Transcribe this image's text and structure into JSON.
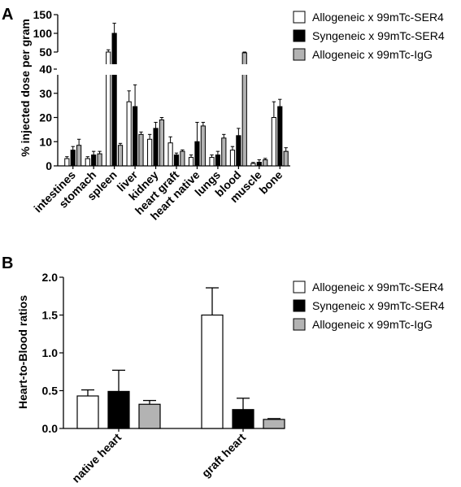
{
  "panels": {
    "a_letter": "A",
    "b_letter": "B"
  },
  "colors": {
    "allogeneic_ser4": "#ffffff",
    "syngeneic_ser4": "#000000",
    "allogeneic_igg": "#b3b3b3"
  },
  "chart_data": [
    {
      "panel": "A",
      "type": "bar",
      "ylabel": "% injected dose per gram",
      "axis_break": true,
      "lower_segment": {
        "ylim": [
          0,
          40
        ],
        "ticks": [
          "0",
          "10",
          "20",
          "30",
          "40"
        ]
      },
      "upper_segment": {
        "ylim": [
          50,
          150
        ],
        "ticks": [
          "50",
          "100",
          "150"
        ]
      },
      "categories": [
        "intestines",
        "stomach",
        "spleen",
        "liver",
        "kidney",
        "heart graft",
        "heart native",
        "lungs",
        "blood",
        "muscle",
        "bone"
      ],
      "series": [
        {
          "name": "Allogeneic x 99mTc-SER4",
          "values": [
            3,
            3,
            50,
            26.5,
            11,
            9.5,
            3.5,
            3.5,
            6.5,
            1,
            20
          ],
          "errors": [
            0.8,
            0.8,
            6,
            4.5,
            2,
            2.5,
            1,
            1,
            1.5,
            0.4,
            6.5
          ]
        },
        {
          "name": "Syngeneic x 99mTc-SER4",
          "values": [
            6.5,
            4.5,
            100,
            24.5,
            15.5,
            4.5,
            10,
            4.5,
            12.5,
            1.5,
            24.5
          ],
          "errors": [
            1.5,
            1.5,
            27,
            9,
            2.5,
            0.8,
            8,
            1.5,
            3,
            1,
            3
          ]
        },
        {
          "name": "Allogeneic x 99mTc-IgG",
          "values": [
            8.5,
            5,
            8.5,
            13,
            19,
            6,
            16.5,
            11.5,
            48,
            2.5,
            6
          ],
          "errors": [
            2.5,
            1,
            0.8,
            1,
            1,
            0.6,
            1.5,
            1.5,
            2,
            0.6,
            1.5
          ]
        }
      ]
    },
    {
      "panel": "B",
      "type": "bar",
      "ylabel": "Heart-to-Blood ratios",
      "ylim": [
        0,
        2.0
      ],
      "ticks": [
        "0.0",
        "0.5",
        "1.0",
        "1.5",
        "2.0"
      ],
      "categories": [
        "native heart",
        "graft heart"
      ],
      "series": [
        {
          "name": "Allogeneic x 99mTc-SER4",
          "values": [
            0.43,
            1.5
          ],
          "errors": [
            0.08,
            0.36
          ]
        },
        {
          "name": "Syngeneic x 99mTc-SER4",
          "values": [
            0.49,
            0.25
          ],
          "errors": [
            0.28,
            0.15
          ]
        },
        {
          "name": "Allogeneic x 99mTc-IgG",
          "values": [
            0.32,
            0.12
          ],
          "errors": [
            0.05,
            0.01
          ]
        }
      ]
    }
  ]
}
